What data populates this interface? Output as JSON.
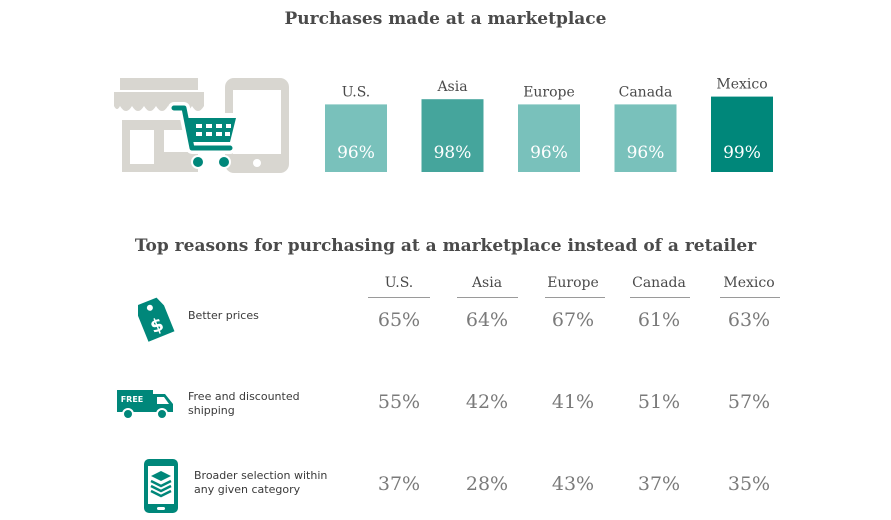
{
  "title": "Purchases made at a marketplace",
  "subtitle": "Top reasons for purchasing at a marketplace instead of a retailer",
  "icons": {
    "store": "storefront-icon",
    "cart": "shopping-cart-icon",
    "tablet": "tablet-icon",
    "tag": "dollar-price-tag-icon",
    "truck": "free-delivery-truck-icon",
    "layers": "stacked-layers-phone-icon",
    "truck_text": "FREE"
  },
  "colors": {
    "light_teal": "#79c1bb",
    "mid_teal": "#45a59c",
    "dark_teal": "#00877a",
    "gray_icon": "#d8d6d0"
  },
  "chart_data": [
    {
      "type": "bar",
      "title": "Purchases made at a marketplace",
      "categories": [
        "U.S.",
        "Asia",
        "Europe",
        "Canada",
        "Mexico"
      ],
      "values": [
        96,
        98,
        96,
        96,
        99
      ],
      "value_labels": [
        "96%",
        "98%",
        "96%",
        "96%",
        "99%"
      ],
      "bar_colors": [
        "#79c1bb",
        "#45a59c",
        "#79c1bb",
        "#79c1bb",
        "#00877a"
      ],
      "ylim": [
        0,
        100
      ],
      "xlabel": "",
      "ylabel": ""
    },
    {
      "type": "table",
      "title": "Top reasons for purchasing at a marketplace instead of a retailer",
      "columns": [
        "U.S.",
        "Asia",
        "Europe",
        "Canada",
        "Mexico"
      ],
      "rows": [
        {
          "label": "Better prices",
          "values": [
            "65%",
            "64%",
            "67%",
            "61%",
            "63%"
          ]
        },
        {
          "label": "Free and discounted shipping",
          "values": [
            "55%",
            "42%",
            "41%",
            "51%",
            "57%"
          ]
        },
        {
          "label": "Broader selection within any given category",
          "values": [
            "37%",
            "28%",
            "43%",
            "37%",
            "35%"
          ]
        }
      ]
    }
  ]
}
